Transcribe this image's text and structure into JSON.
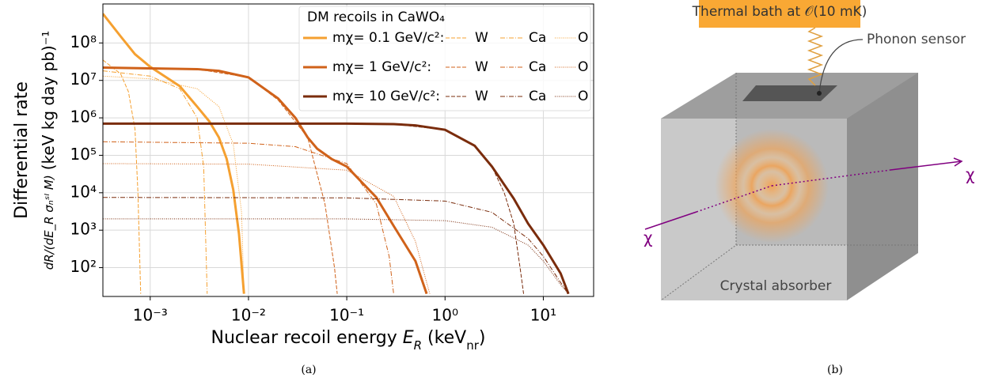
{
  "chart_data": {
    "type": "line",
    "log_x": true,
    "log_y": true,
    "grid": true,
    "legend_loc": "upper right",
    "legend_title": "DM recoils in CaWO₄",
    "xlabel": [
      "Nuclear recoil energy ",
      "E",
      "R",
      " (keV",
      "nr",
      ")"
    ],
    "ylabel": "Differential rate",
    "ylabel_factor": "dR/(dE_R σₙˢᴵ M)",
    "ylabel_unit": "(keV kg day pb)⁻¹",
    "xlim": [
      0.00033,
      32.5
    ],
    "ylim": [
      17,
      1100000000
    ],
    "xticks": [
      {
        "value": 0.001,
        "label": "10⁻³"
      },
      {
        "value": 0.01,
        "label": "10⁻²"
      },
      {
        "value": 0.1,
        "label": "10⁻¹"
      },
      {
        "value": 1,
        "label": "10⁰"
      },
      {
        "value": 10,
        "label": "10¹"
      }
    ],
    "yticks": [
      {
        "value": 100,
        "label": "10²"
      },
      {
        "value": 1000,
        "label": "10³"
      },
      {
        "value": 10000,
        "label": "10⁴"
      },
      {
        "value": 100000,
        "label": "10⁵"
      },
      {
        "value": 1000000,
        "label": "10⁶"
      },
      {
        "value": 10000000,
        "label": "10⁷"
      },
      {
        "value": 100000000,
        "label": "10⁸"
      }
    ],
    "series": [
      {
        "name": "mχ= 0.1 GeV/c²:",
        "color": "#f5a030",
        "dash": "solid",
        "x": [
          0.00033,
          0.0005,
          0.0007,
          0.001,
          0.002,
          0.003,
          0.004,
          0.005,
          0.006,
          0.007,
          0.008,
          0.009
        ],
        "values": [
          600000000,
          150000000,
          50000000,
          23000000,
          7000000,
          2000000,
          800000,
          300000,
          80000,
          12000,
          800,
          20
        ]
      },
      {
        "name": "W",
        "color": "#f5a030",
        "dash": "dashed",
        "x": [
          0.00033,
          0.0005,
          0.0006,
          0.0007,
          0.00075,
          0.0008
        ],
        "values": [
          35000000,
          15000000,
          5000000,
          500000,
          10000,
          20
        ]
      },
      {
        "name": "Ca",
        "color": "#f5a030",
        "dash": "dashdot",
        "x": [
          0.00033,
          0.001,
          0.002,
          0.003,
          0.0035,
          0.0038
        ],
        "values": [
          18000000,
          13000000,
          6000000,
          1000000,
          50000,
          20
        ]
      },
      {
        "name": "O",
        "color": "#f5a030",
        "dash": "dotted",
        "x": [
          0.00033,
          0.001,
          0.003,
          0.005,
          0.007,
          0.0085,
          0.009
        ],
        "values": [
          13000000,
          11000000,
          6000000,
          2000000,
          200000,
          3000,
          20
        ]
      },
      {
        "name": "mχ= 1 GeV/c²:",
        "color": "#d0621a",
        "dash": "solid",
        "x": [
          0.00033,
          0.001,
          0.003,
          0.005,
          0.01,
          0.02,
          0.03,
          0.04,
          0.05,
          0.07,
          0.1,
          0.2,
          0.3,
          0.5,
          0.65
        ],
        "values": [
          22000000,
          21000000,
          20000000,
          18000000,
          12000000,
          3300000,
          1000000,
          300000,
          150000,
          80000,
          50000,
          7500,
          1300,
          150,
          20
        ]
      },
      {
        "name": "W",
        "color": "#d0621a",
        "dash": "dashed",
        "x": [
          0.00033,
          0.003,
          0.01,
          0.02,
          0.04,
          0.06,
          0.075,
          0.08
        ],
        "values": [
          22000000,
          20000000,
          12000000,
          3000000,
          300000,
          5000,
          100,
          20
        ]
      },
      {
        "name": "Ca",
        "color": "#d0621a",
        "dash": "dashdot",
        "x": [
          0.00033,
          0.01,
          0.03,
          0.1,
          0.2,
          0.27,
          0.3
        ],
        "values": [
          230000,
          210000,
          170000,
          60000,
          5000,
          200,
          20
        ]
      },
      {
        "name": "O",
        "color": "#d0621a",
        "dash": "dotted",
        "x": [
          0.00033,
          0.01,
          0.1,
          0.3,
          0.5,
          0.65,
          0.7
        ],
        "values": [
          60000,
          58000,
          40000,
          8000,
          500,
          40,
          20
        ]
      },
      {
        "name": "mχ= 10 GeV/c²:",
        "color": "#7a2c0c",
        "dash": "solid",
        "x": [
          0.00033,
          0.1,
          0.3,
          0.5,
          1,
          2,
          3,
          5,
          7,
          10,
          15,
          18
        ],
        "values": [
          700000,
          700000,
          680000,
          630000,
          480000,
          180000,
          50000,
          7000,
          1500,
          400,
          70,
          20
        ]
      },
      {
        "name": "W",
        "color": "#7a2c0c",
        "dash": "dashed",
        "x": [
          0.00033,
          0.3,
          1,
          2,
          3,
          4,
          5,
          5.8,
          6.3
        ],
        "values": [
          700000,
          680000,
          480000,
          180000,
          50000,
          10000,
          1500,
          100,
          20
        ]
      },
      {
        "name": "Ca",
        "color": "#7a2c0c",
        "dash": "dashdot",
        "x": [
          0.00033,
          0.1,
          1,
          3,
          7,
          10,
          15,
          18
        ],
        "values": [
          7500,
          7300,
          6000,
          3000,
          600,
          200,
          40,
          20
        ]
      },
      {
        "name": "O",
        "color": "#7a2c0c",
        "dash": "dotted",
        "x": [
          0.00033,
          0.1,
          1,
          3,
          7,
          10,
          15,
          18
        ],
        "values": [
          2000,
          2000,
          1800,
          1200,
          400,
          150,
          35,
          20
        ]
      }
    ]
  },
  "diagram": {
    "bath_label": "Thermal bath at 𝒪(10 mK)",
    "sensor_label": "Phonon sensor",
    "absorber_label": "Crystal absorber",
    "particle_in": "χ",
    "particle_out": "χ"
  },
  "captions": {
    "a": "(a)",
    "b": "(b)"
  }
}
